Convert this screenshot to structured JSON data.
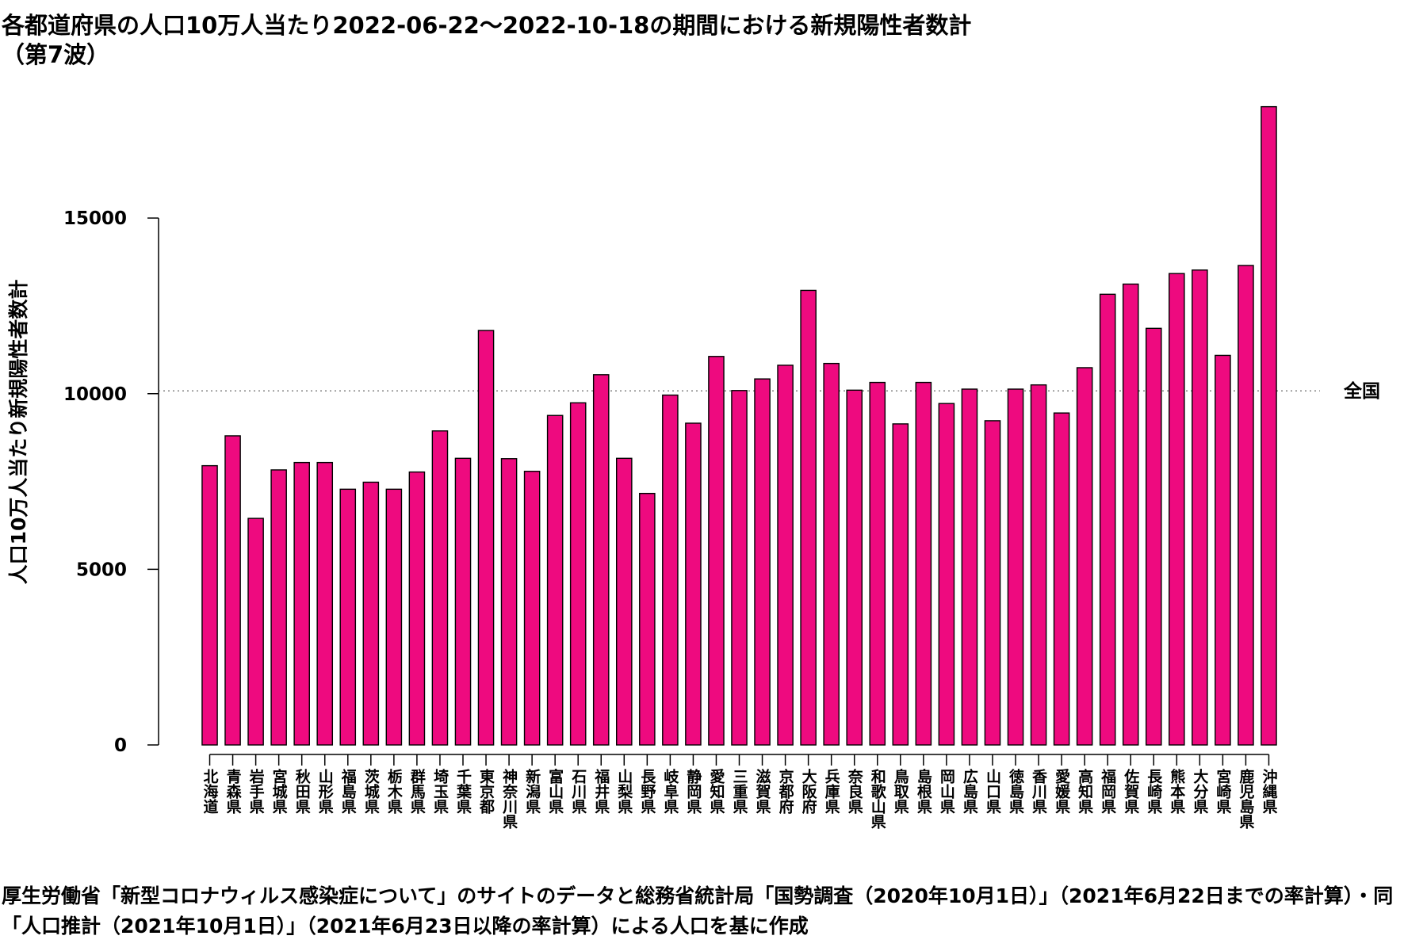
{
  "chart_data": {
    "type": "bar",
    "title": "各都道府県の人口10万人当たり2022-06-22～2022-10-18の期間における新規陽性者数計\n（第7波）",
    "xlabel": "",
    "ylabel": "人口10万人当たり新規陽性者数計",
    "ylim": [
      0,
      18500
    ],
    "yticks": [
      0,
      5000,
      10000,
      15000
    ],
    "grid": false,
    "bar_color": "#EE0A7F",
    "categories": [
      "北海道",
      "青森県",
      "岩手県",
      "宮城県",
      "秋田県",
      "山形県",
      "福島県",
      "茨城県",
      "栃木県",
      "群馬県",
      "埼玉県",
      "千葉県",
      "東京都",
      "神奈川県",
      "新潟県",
      "富山県",
      "石川県",
      "福井県",
      "山梨県",
      "長野県",
      "岐阜県",
      "静岡県",
      "愛知県",
      "三重県",
      "滋賀県",
      "京都府",
      "大阪府",
      "兵庫県",
      "奈良県",
      "和歌山県",
      "鳥取県",
      "島根県",
      "岡山県",
      "広島県",
      "山口県",
      "徳島県",
      "香川県",
      "愛媛県",
      "高知県",
      "福岡県",
      "佐賀県",
      "長崎県",
      "熊本県",
      "大分県",
      "宮崎県",
      "鹿児島県",
      "沖縄県"
    ],
    "values": [
      7950,
      8800,
      6450,
      7830,
      8040,
      8040,
      7280,
      7480,
      7280,
      7770,
      8940,
      8160,
      11800,
      8150,
      7790,
      9380,
      9740,
      10540,
      8160,
      7160,
      9960,
      9160,
      11060,
      10090,
      10420,
      10810,
      12940,
      10860,
      10100,
      10320,
      9140,
      10320,
      9720,
      10130,
      9230,
      10130,
      10250,
      9450,
      10740,
      12830,
      13120,
      11860,
      13420,
      13520,
      11090,
      13650,
      18170
    ],
    "reference": {
      "label": "全国",
      "value": 10080,
      "style": "dotted"
    }
  },
  "source_note": "厚生労働省「新型コロナウィルス感染症について」のサイトのデータと総務省統計局「国勢調査（2020年10月1日）」（2021年6月22日までの率計算）・同「人口推計（2021年10月1日）」（2021年6月23日以降の率計算）による人口を基に作成"
}
